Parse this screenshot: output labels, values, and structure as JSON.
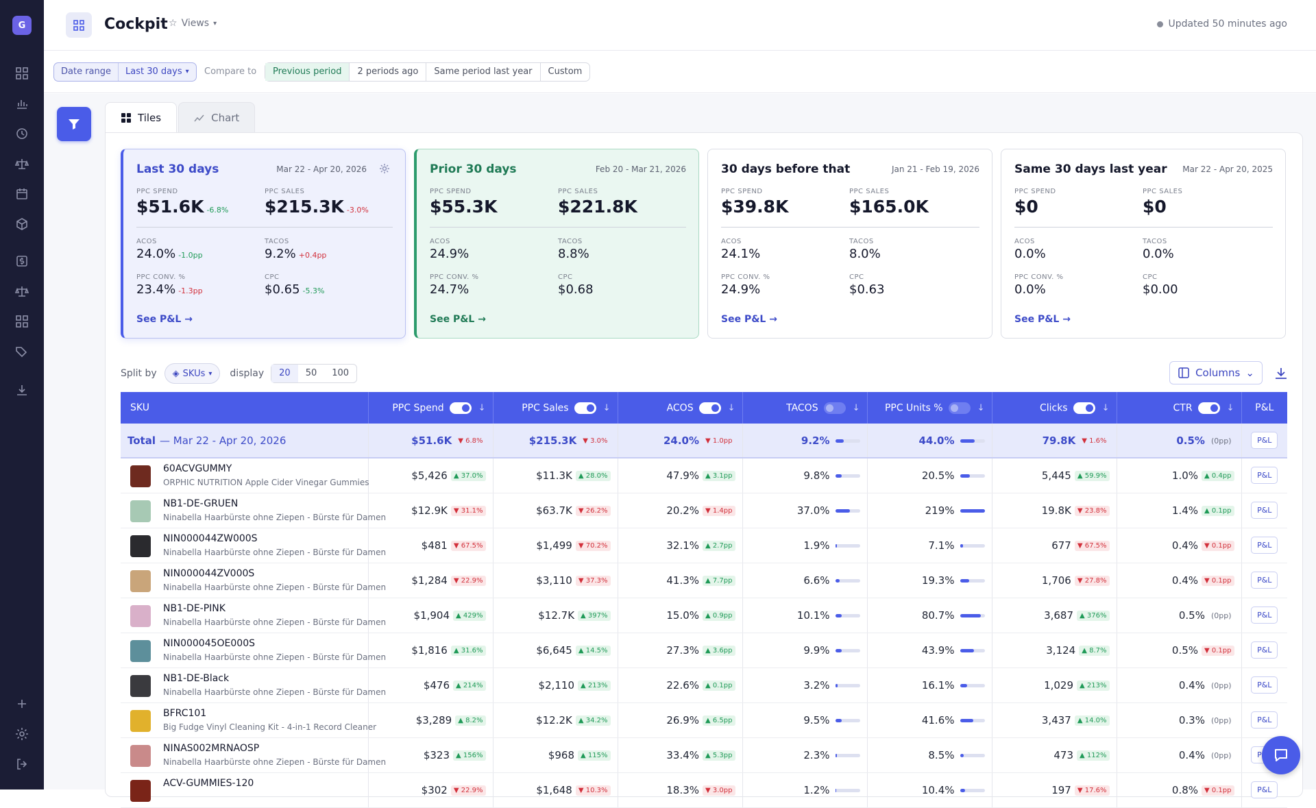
{
  "app": {
    "logo_letter": "G",
    "title": "Cockpit",
    "views_label": "Views",
    "updated": "Updated 50 minutes ago"
  },
  "filters": {
    "date_range_label": "Date range",
    "date_range_value": "Last 30 days",
    "compare_label": "Compare to",
    "compare_options": [
      "Previous period",
      "2 periods ago",
      "Same period last year",
      "Custom"
    ],
    "compare_active": "Previous period"
  },
  "tabs": [
    {
      "label": "Tiles",
      "active": true
    },
    {
      "label": "Chart",
      "active": false
    }
  ],
  "cards": [
    {
      "title": "Last 30 days",
      "date": "Mar 22 - Apr 20, 2026",
      "spend": "$51.6K",
      "spend_chg": "-6.8%",
      "sales": "$215.3K",
      "sales_chg": "-3.0%",
      "acos": "24.0%",
      "acos_chg": "-1.0pp",
      "tacos": "9.2%",
      "tacos_chg": "+0.4pp",
      "conv": "23.4%",
      "conv_chg": "-1.3pp",
      "cpc": "$0.65",
      "cpc_chg": "-5.3%",
      "link": "See P&L →"
    },
    {
      "title": "Prior 30 days",
      "date": "Feb 20 - Mar 21, 2026",
      "spend": "$55.3K",
      "sales": "$221.8K",
      "acos": "24.9%",
      "tacos": "8.8%",
      "conv": "24.7%",
      "cpc": "$0.68",
      "link": "See P&L →"
    },
    {
      "title": "30 days before that",
      "date": "Jan 21 - Feb 19, 2026",
      "spend": "$39.8K",
      "sales": "$165.0K",
      "acos": "24.1%",
      "tacos": "8.0%",
      "conv": "24.9%",
      "cpc": "$0.63",
      "link": "See P&L →"
    },
    {
      "title": "Same 30 days last year",
      "date": "Mar 22 - Apr 20, 2025",
      "spend": "$0",
      "sales": "$0",
      "acos": "0.0%",
      "tacos": "0.0%",
      "conv": "0.0%",
      "cpc": "$0.00",
      "link": "See P&L →"
    }
  ],
  "metric_labels": {
    "spend": "PPC SPEND",
    "sales": "PPC SALES",
    "acos": "ACOS",
    "tacos": "TACOS",
    "conv": "PPC CONV. %",
    "cpc": "CPC"
  },
  "table_controls": {
    "split_by": "Split by",
    "split_value": "SKUs",
    "display": "display",
    "display_options": [
      "20",
      "50",
      "100"
    ],
    "display_active": "20",
    "columns_btn": "Columns"
  },
  "columns": [
    {
      "label": "SKU"
    },
    {
      "label": "PPC Spend",
      "toggle": true
    },
    {
      "label": "PPC Sales",
      "toggle": true
    },
    {
      "label": "ACOS",
      "toggle": true
    },
    {
      "label": "TACOS",
      "toggle": false
    },
    {
      "label": "PPC Units %",
      "toggle": false
    },
    {
      "label": "Clicks",
      "toggle": true
    },
    {
      "label": "CTR",
      "toggle": true
    },
    {
      "label": "P&L"
    }
  ],
  "total": {
    "label": "Total",
    "range": "— Mar 22 - Apr 20, 2026",
    "spend": "$51.6K",
    "spend_chg": "6.8%",
    "spend_dir": "down",
    "sales": "$215.3K",
    "sales_chg": "3.0%",
    "sales_dir": "down",
    "acos": "24.0%",
    "acos_chg": "1.0pp",
    "acos_dir": "down",
    "tacos": "9.2%",
    "tacos_fill": 0.35,
    "units": "44.0%",
    "units_fill": 0.6,
    "clicks": "79.8K",
    "clicks_chg": "1.6%",
    "clicks_dir": "down",
    "ctr": "0.5%",
    "ctr_chg": "(0pp)",
    "ctr_dir": "none",
    "pl": "P&L"
  },
  "rows": [
    {
      "sku": "60ACVGUMMY",
      "desc": "ORPHIC NUTRITION Apple Cider Vinegar Gummies",
      "thumb": "#6e2a1f",
      "spend": "$5,426",
      "spend_chg": "37.0%",
      "spend_dir": "up",
      "sales": "$11.3K",
      "sales_chg": "28.0%",
      "sales_dir": "up",
      "acos": "47.9%",
      "acos_chg": "3.1pp",
      "acos_dir": "up",
      "tacos": "9.8%",
      "tacos_fill": 0.25,
      "units": "20.5%",
      "units_fill": 0.4,
      "clicks": "5,445",
      "clicks_chg": "59.9%",
      "clicks_dir": "up",
      "ctr": "1.0%",
      "ctr_chg": "0.4pp",
      "ctr_dir": "up",
      "pl": "P&L"
    },
    {
      "sku": "NB1-DE-GRUEN",
      "desc": "Ninabella Haarbürste ohne Ziepen - Bürste für Damen",
      "thumb": "#a7c9b4",
      "spend": "$12.9K",
      "spend_chg": "31.1%",
      "spend_dir": "down",
      "sales": "$63.7K",
      "sales_chg": "26.2%",
      "sales_dir": "down",
      "acos": "20.2%",
      "acos_chg": "1.4pp",
      "acos_dir": "down",
      "tacos": "37.0%",
      "tacos_fill": 0.6,
      "units": "219%",
      "units_fill": 1.0,
      "clicks": "19.8K",
      "clicks_chg": "23.8%",
      "clicks_dir": "down",
      "ctr": "1.4%",
      "ctr_chg": "0.1pp",
      "ctr_dir": "up",
      "pl": "P&L"
    },
    {
      "sku": "NIN000044ZW000S",
      "desc": "Ninabella Haarbürste ohne Ziepen - Bürste für Damen",
      "thumb": "#2a2a2e",
      "spend": "$481",
      "spend_chg": "67.5%",
      "spend_dir": "down",
      "sales": "$1,499",
      "sales_chg": "70.2%",
      "sales_dir": "down",
      "acos": "32.1%",
      "acos_chg": "2.7pp",
      "acos_dir": "up",
      "tacos": "1.9%",
      "tacos_fill": 0.06,
      "units": "7.1%",
      "units_fill": 0.12,
      "clicks": "677",
      "clicks_chg": "67.5%",
      "clicks_dir": "down",
      "ctr": "0.4%",
      "ctr_chg": "0.1pp",
      "ctr_dir": "down",
      "pl": "P&L"
    },
    {
      "sku": "NIN000044ZV000S",
      "desc": "Ninabella Haarbürste ohne Ziepen - Bürste für Damen",
      "thumb": "#c9a57a",
      "spend": "$1,284",
      "spend_chg": "22.9%",
      "spend_dir": "down",
      "sales": "$3,110",
      "sales_chg": "37.3%",
      "sales_dir": "down",
      "acos": "41.3%",
      "acos_chg": "7.7pp",
      "acos_dir": "up",
      "tacos": "6.6%",
      "tacos_fill": 0.18,
      "units": "19.3%",
      "units_fill": 0.38,
      "clicks": "1,706",
      "clicks_chg": "27.8%",
      "clicks_dir": "down",
      "ctr": "0.4%",
      "ctr_chg": "0.1pp",
      "ctr_dir": "down",
      "pl": "P&L"
    },
    {
      "sku": "NB1-DE-PINK",
      "desc": "Ninabella Haarbürste ohne Ziepen - Bürste für Damen",
      "thumb": "#d9b0c9",
      "spend": "$1,904",
      "spend_chg": "429%",
      "spend_dir": "up",
      "sales": "$12.7K",
      "sales_chg": "397%",
      "sales_dir": "up",
      "acos": "15.0%",
      "acos_chg": "0.9pp",
      "acos_dir": "up",
      "tacos": "10.1%",
      "tacos_fill": 0.25,
      "units": "80.7%",
      "units_fill": 0.85,
      "clicks": "3,687",
      "clicks_chg": "376%",
      "clicks_dir": "up",
      "ctr": "0.5%",
      "ctr_chg": "(0pp)",
      "ctr_dir": "none",
      "pl": "P&L"
    },
    {
      "sku": "NIN000045OE000S",
      "desc": "Ninabella Haarbürste ohne Ziepen - Bürste für Damen",
      "thumb": "#5d8f9b",
      "spend": "$1,816",
      "spend_chg": "31.6%",
      "spend_dir": "up",
      "sales": "$6,645",
      "sales_chg": "14.5%",
      "sales_dir": "up",
      "acos": "27.3%",
      "acos_chg": "3.6pp",
      "acos_dir": "up",
      "tacos": "9.9%",
      "tacos_fill": 0.25,
      "units": "43.9%",
      "units_fill": 0.58,
      "clicks": "3,124",
      "clicks_chg": "8.7%",
      "clicks_dir": "up",
      "ctr": "0.5%",
      "ctr_chg": "0.1pp",
      "ctr_dir": "down",
      "pl": "P&L"
    },
    {
      "sku": "NB1-DE-Black",
      "desc": "Ninabella Haarbürste ohne Ziepen - Bürste für Damen",
      "thumb": "#3a3a3e",
      "spend": "$476",
      "spend_chg": "214%",
      "spend_dir": "up",
      "sales": "$2,110",
      "sales_chg": "213%",
      "sales_dir": "up",
      "acos": "22.6%",
      "acos_chg": "0.1pp",
      "acos_dir": "up",
      "tacos": "3.2%",
      "tacos_fill": 0.1,
      "units": "16.1%",
      "units_fill": 0.3,
      "clicks": "1,029",
      "clicks_chg": "213%",
      "clicks_dir": "up",
      "ctr": "0.4%",
      "ctr_chg": "(0pp)",
      "ctr_dir": "none",
      "pl": "P&L"
    },
    {
      "sku": "BFRC101",
      "desc": "Big Fudge Vinyl Cleaning Kit - 4-in-1 Record Cleaner",
      "thumb": "#e1b12c",
      "spend": "$3,289",
      "spend_chg": "8.2%",
      "spend_dir": "up",
      "sales": "$12.2K",
      "sales_chg": "34.2%",
      "sales_dir": "up",
      "acos": "26.9%",
      "acos_chg": "6.5pp",
      "acos_dir": "up",
      "tacos": "9.5%",
      "tacos_fill": 0.25,
      "units": "41.6%",
      "units_fill": 0.55,
      "clicks": "3,437",
      "clicks_chg": "14.0%",
      "clicks_dir": "up",
      "ctr": "0.3%",
      "ctr_chg": "(0pp)",
      "ctr_dir": "none",
      "pl": "P&L"
    },
    {
      "sku": "NINAS002MRNAOSP",
      "desc": "Ninabella Haarbürste ohne Ziepen - Bürste für Damen",
      "thumb": "#c98a8a",
      "spend": "$323",
      "spend_chg": "156%",
      "spend_dir": "up",
      "sales": "$968",
      "sales_chg": "115%",
      "sales_dir": "up",
      "acos": "33.4%",
      "acos_chg": "5.3pp",
      "acos_dir": "up",
      "tacos": "2.3%",
      "tacos_fill": 0.08,
      "units": "8.5%",
      "units_fill": 0.15,
      "clicks": "473",
      "clicks_chg": "112%",
      "clicks_dir": "up",
      "ctr": "0.4%",
      "ctr_chg": "(0pp)",
      "ctr_dir": "none",
      "pl": "P&L"
    },
    {
      "sku": "ACV-GUMMIES-120",
      "desc": "",
      "thumb": "#7a2418",
      "spend": "$302",
      "spend_chg": "22.9%",
      "spend_dir": "down",
      "sales": "$1,648",
      "sales_chg": "10.3%",
      "sales_dir": "down",
      "acos": "18.3%",
      "acos_chg": "3.0pp",
      "acos_dir": "down",
      "tacos": "1.2%",
      "tacos_fill": 0.05,
      "units": "10.4%",
      "units_fill": 0.2,
      "clicks": "197",
      "clicks_chg": "17.6%",
      "clicks_dir": "down",
      "ctr": "0.8%",
      "ctr_chg": "0.1pp",
      "ctr_dir": "down",
      "pl": "P&L"
    }
  ],
  "colors": {
    "accent": "#4a5ce8",
    "sidebar": "#1b1d35",
    "positive": "#1f9a57",
    "negative": "#d2303b"
  }
}
